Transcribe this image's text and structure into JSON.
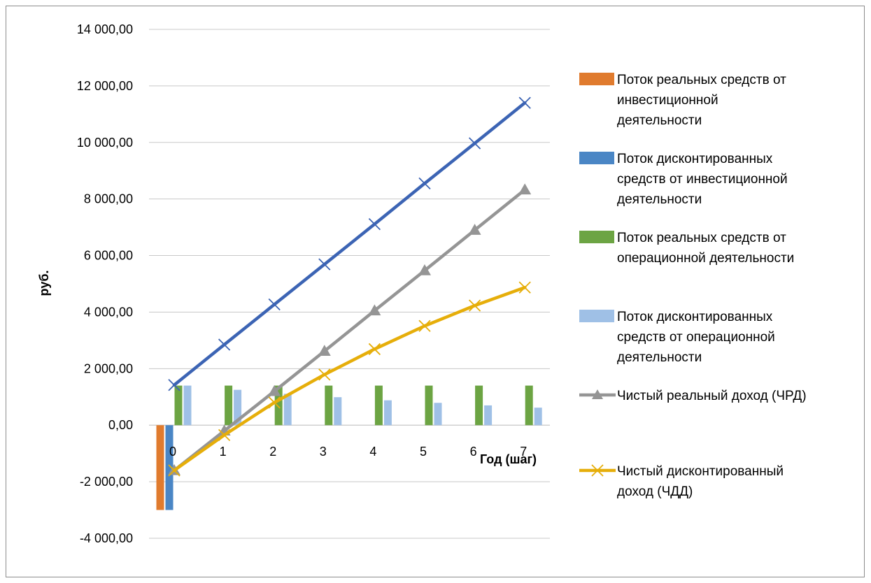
{
  "chart_data": {
    "type": "bar",
    "title": "",
    "xlabel": "Год (шаг)",
    "ylabel": "руб.",
    "ylim": [
      -4000,
      14000
    ],
    "y_ticks": [
      14000,
      12000,
      10000,
      8000,
      6000,
      4000,
      2000,
      0,
      -2000,
      -4000
    ],
    "y_tick_labels": [
      "14 000,00",
      "12 000,00",
      "10 000,00",
      "8 000,00",
      "6 000,00",
      "4 000,00",
      "2 000,00",
      "0,00",
      "-2 000,00",
      "-4 000,00"
    ],
    "categories": [
      "0",
      "1",
      "2",
      "3",
      "4",
      "5",
      "6",
      "7"
    ],
    "grid": "horizontal",
    "legend_position": "right",
    "bar_series": [
      {
        "name": "Поток реальных средств от инвестиционной деятельности",
        "legend_lines": [
          "Поток реальных средств от",
          "инвестиционной",
          "деятельности"
        ],
        "color": "#e07b2e",
        "values": [
          -3000,
          0,
          0,
          0,
          0,
          0,
          0,
          0
        ]
      },
      {
        "name": "Поток дисконтированных средств от инвестиционной деятельности",
        "legend_lines": [
          "Поток дисконтированных",
          "средств от инвестиционной",
          "деятельности"
        ],
        "color": "#4a86c5",
        "values": [
          -3000,
          0,
          0,
          0,
          0,
          0,
          0,
          0
        ]
      },
      {
        "name": "Поток реальных средств от операционной деятельности",
        "legend_lines": [
          "Поток реальных средств от",
          "операционной деятельности"
        ],
        "color": "#6ca443",
        "values": [
          1400,
          1400,
          1400,
          1400,
          1400,
          1400,
          1400,
          1400
        ]
      },
      {
        "name": "Поток дисконтированных средств от операционной деятельности",
        "legend_lines": [
          "Поток дисконтированных",
          "средств от операционной",
          "деятельности"
        ],
        "color": "#9fc0e6",
        "values": [
          1400,
          1250,
          1110,
          990,
          880,
          790,
          700,
          620
        ]
      }
    ],
    "line_series": [
      {
        "name": "unlabeled-blue-line",
        "color": "#3c64b4",
        "marker": "x",
        "values": [
          1420,
          2850,
          4270,
          5690,
          7110,
          8550,
          9970,
          11400
        ]
      },
      {
        "name": "Чистый реальный доход (ЧРД)",
        "legend_lines": [
          "Чистый реальный доход (ЧРД)"
        ],
        "color": "#959595",
        "marker": "triangle",
        "values": [
          -1600,
          -200,
          1200,
          2620,
          4050,
          5470,
          6900,
          8330
        ]
      },
      {
        "name": "Чистый дисконтированный доход (ЧДД)",
        "legend_lines": [
          "Чистый дисконтированный",
          "доход (ЧДД)"
        ],
        "color": "#e6ae0a",
        "marker": "x",
        "values": [
          -1600,
          -350,
          800,
          1790,
          2690,
          3510,
          4230,
          4870
        ]
      }
    ]
  }
}
